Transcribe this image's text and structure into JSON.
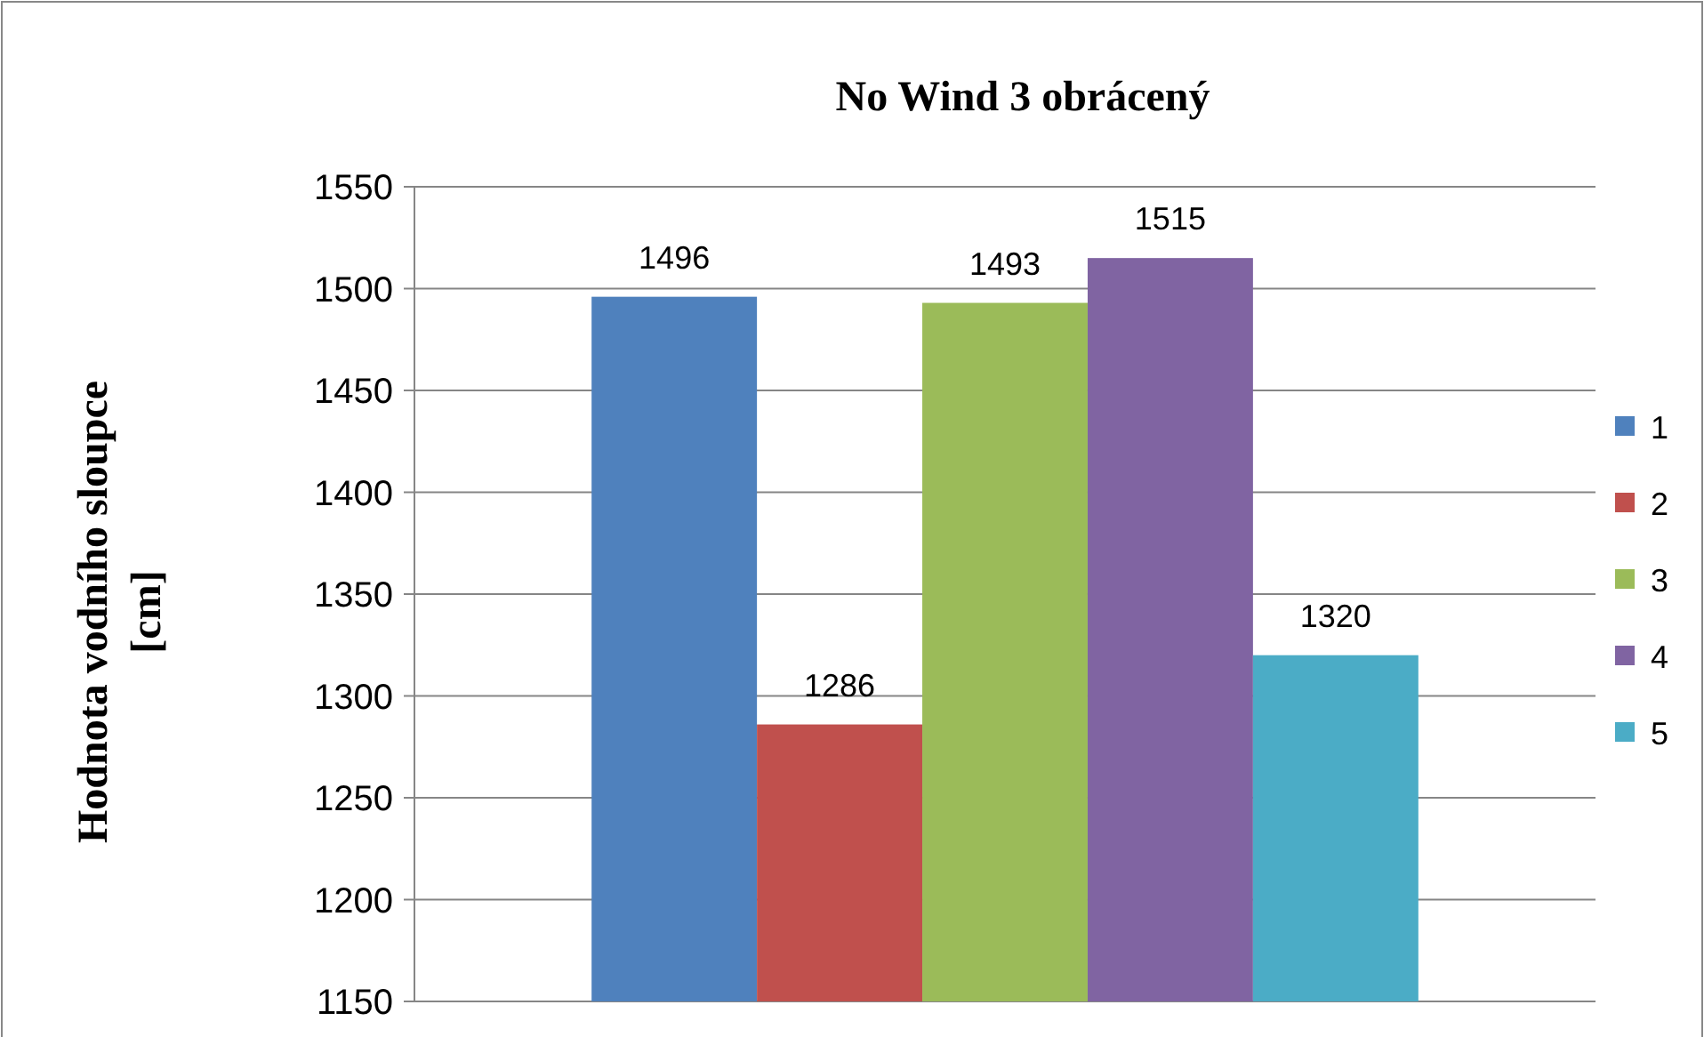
{
  "chart_data": {
    "type": "bar",
    "title": "No Wind 3 obrácený",
    "ylabel": "Hodnota vodního sloupce [cm]",
    "categories": [
      null
    ],
    "series": [
      {
        "name": "1",
        "color": "#4f81bd",
        "values": [
          1496
        ]
      },
      {
        "name": "2",
        "color": "#c0504d",
        "values": [
          1286
        ]
      },
      {
        "name": "3",
        "color": "#9bbb59",
        "values": [
          1493
        ]
      },
      {
        "name": "4",
        "color": "#8064a2",
        "values": [
          1515
        ]
      },
      {
        "name": "5",
        "color": "#4bacc6",
        "values": [
          1320
        ]
      }
    ],
    "ylim": [
      1150,
      1550
    ],
    "yticks": [
      1150,
      1200,
      1250,
      1300,
      1350,
      1400,
      1450,
      1500,
      1550
    ],
    "grid": "y",
    "legend": "right",
    "data_labels": true
  }
}
